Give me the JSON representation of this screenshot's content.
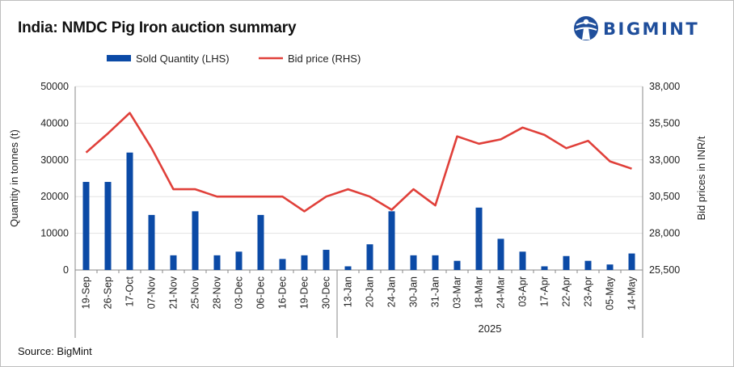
{
  "title": "India: NMDC Pig Iron auction summary",
  "brand": {
    "name": "BIGMINT",
    "color": "#1f4e9b",
    "icon": "globe-person-icon"
  },
  "source": "Source: BigMint",
  "chart_data": {
    "type": "bar+line",
    "categories": [
      "19-Sep",
      "26-Sep",
      "17-Oct",
      "07-Nov",
      "21-Nov",
      "25-Nov",
      "28-Nov",
      "03-Dec",
      "06-Dec",
      "16-Dec",
      "19-Dec",
      "30-Dec",
      "13-Jan",
      "20-Jan",
      "24-Jan",
      "30-Jan",
      "31-Jan",
      "03-Mar",
      "18-Mar",
      "24-Mar",
      "03-Apr",
      "17-Apr",
      "22-Apr",
      "23-Apr",
      "05-May",
      "14-May"
    ],
    "year_group": {
      "label": "2025",
      "start_index": 12
    },
    "series": [
      {
        "name": "Sold Quantity (LHS)",
        "type": "bar",
        "axis": "left",
        "color": "#0b4aa6",
        "values": [
          24000,
          24000,
          32000,
          15000,
          4000,
          16000,
          4000,
          5000,
          15000,
          3000,
          4000,
          5500,
          1000,
          7000,
          16000,
          4000,
          4000,
          2500,
          17000,
          8500,
          5000,
          1000,
          3800,
          2500,
          1500,
          4500
        ]
      },
      {
        "name": "Bid price (RHS)",
        "type": "line",
        "axis": "right",
        "color": "#e0403a",
        "values": [
          33500,
          34800,
          36200,
          33800,
          31000,
          31000,
          30500,
          30500,
          30500,
          30500,
          29500,
          30500,
          31000,
          30500,
          29600,
          31000,
          29900,
          34600,
          34100,
          34400,
          35200,
          34700,
          33800,
          34300,
          32900,
          32400
        ]
      }
    ],
    "left_axis": {
      "label": "Quantity in tonnes (t)",
      "range": [
        0,
        50000
      ],
      "ticks": [
        "0",
        "10000",
        "20000",
        "30000",
        "40000",
        "50000"
      ]
    },
    "right_axis": {
      "label": "Bid prices in INR/t",
      "range": [
        25500,
        38000
      ],
      "ticks": [
        "25,500",
        "28,000",
        "30,500",
        "33,000",
        "35,500",
        "38,000"
      ]
    },
    "legend": {
      "position": "top"
    },
    "grid": true
  }
}
